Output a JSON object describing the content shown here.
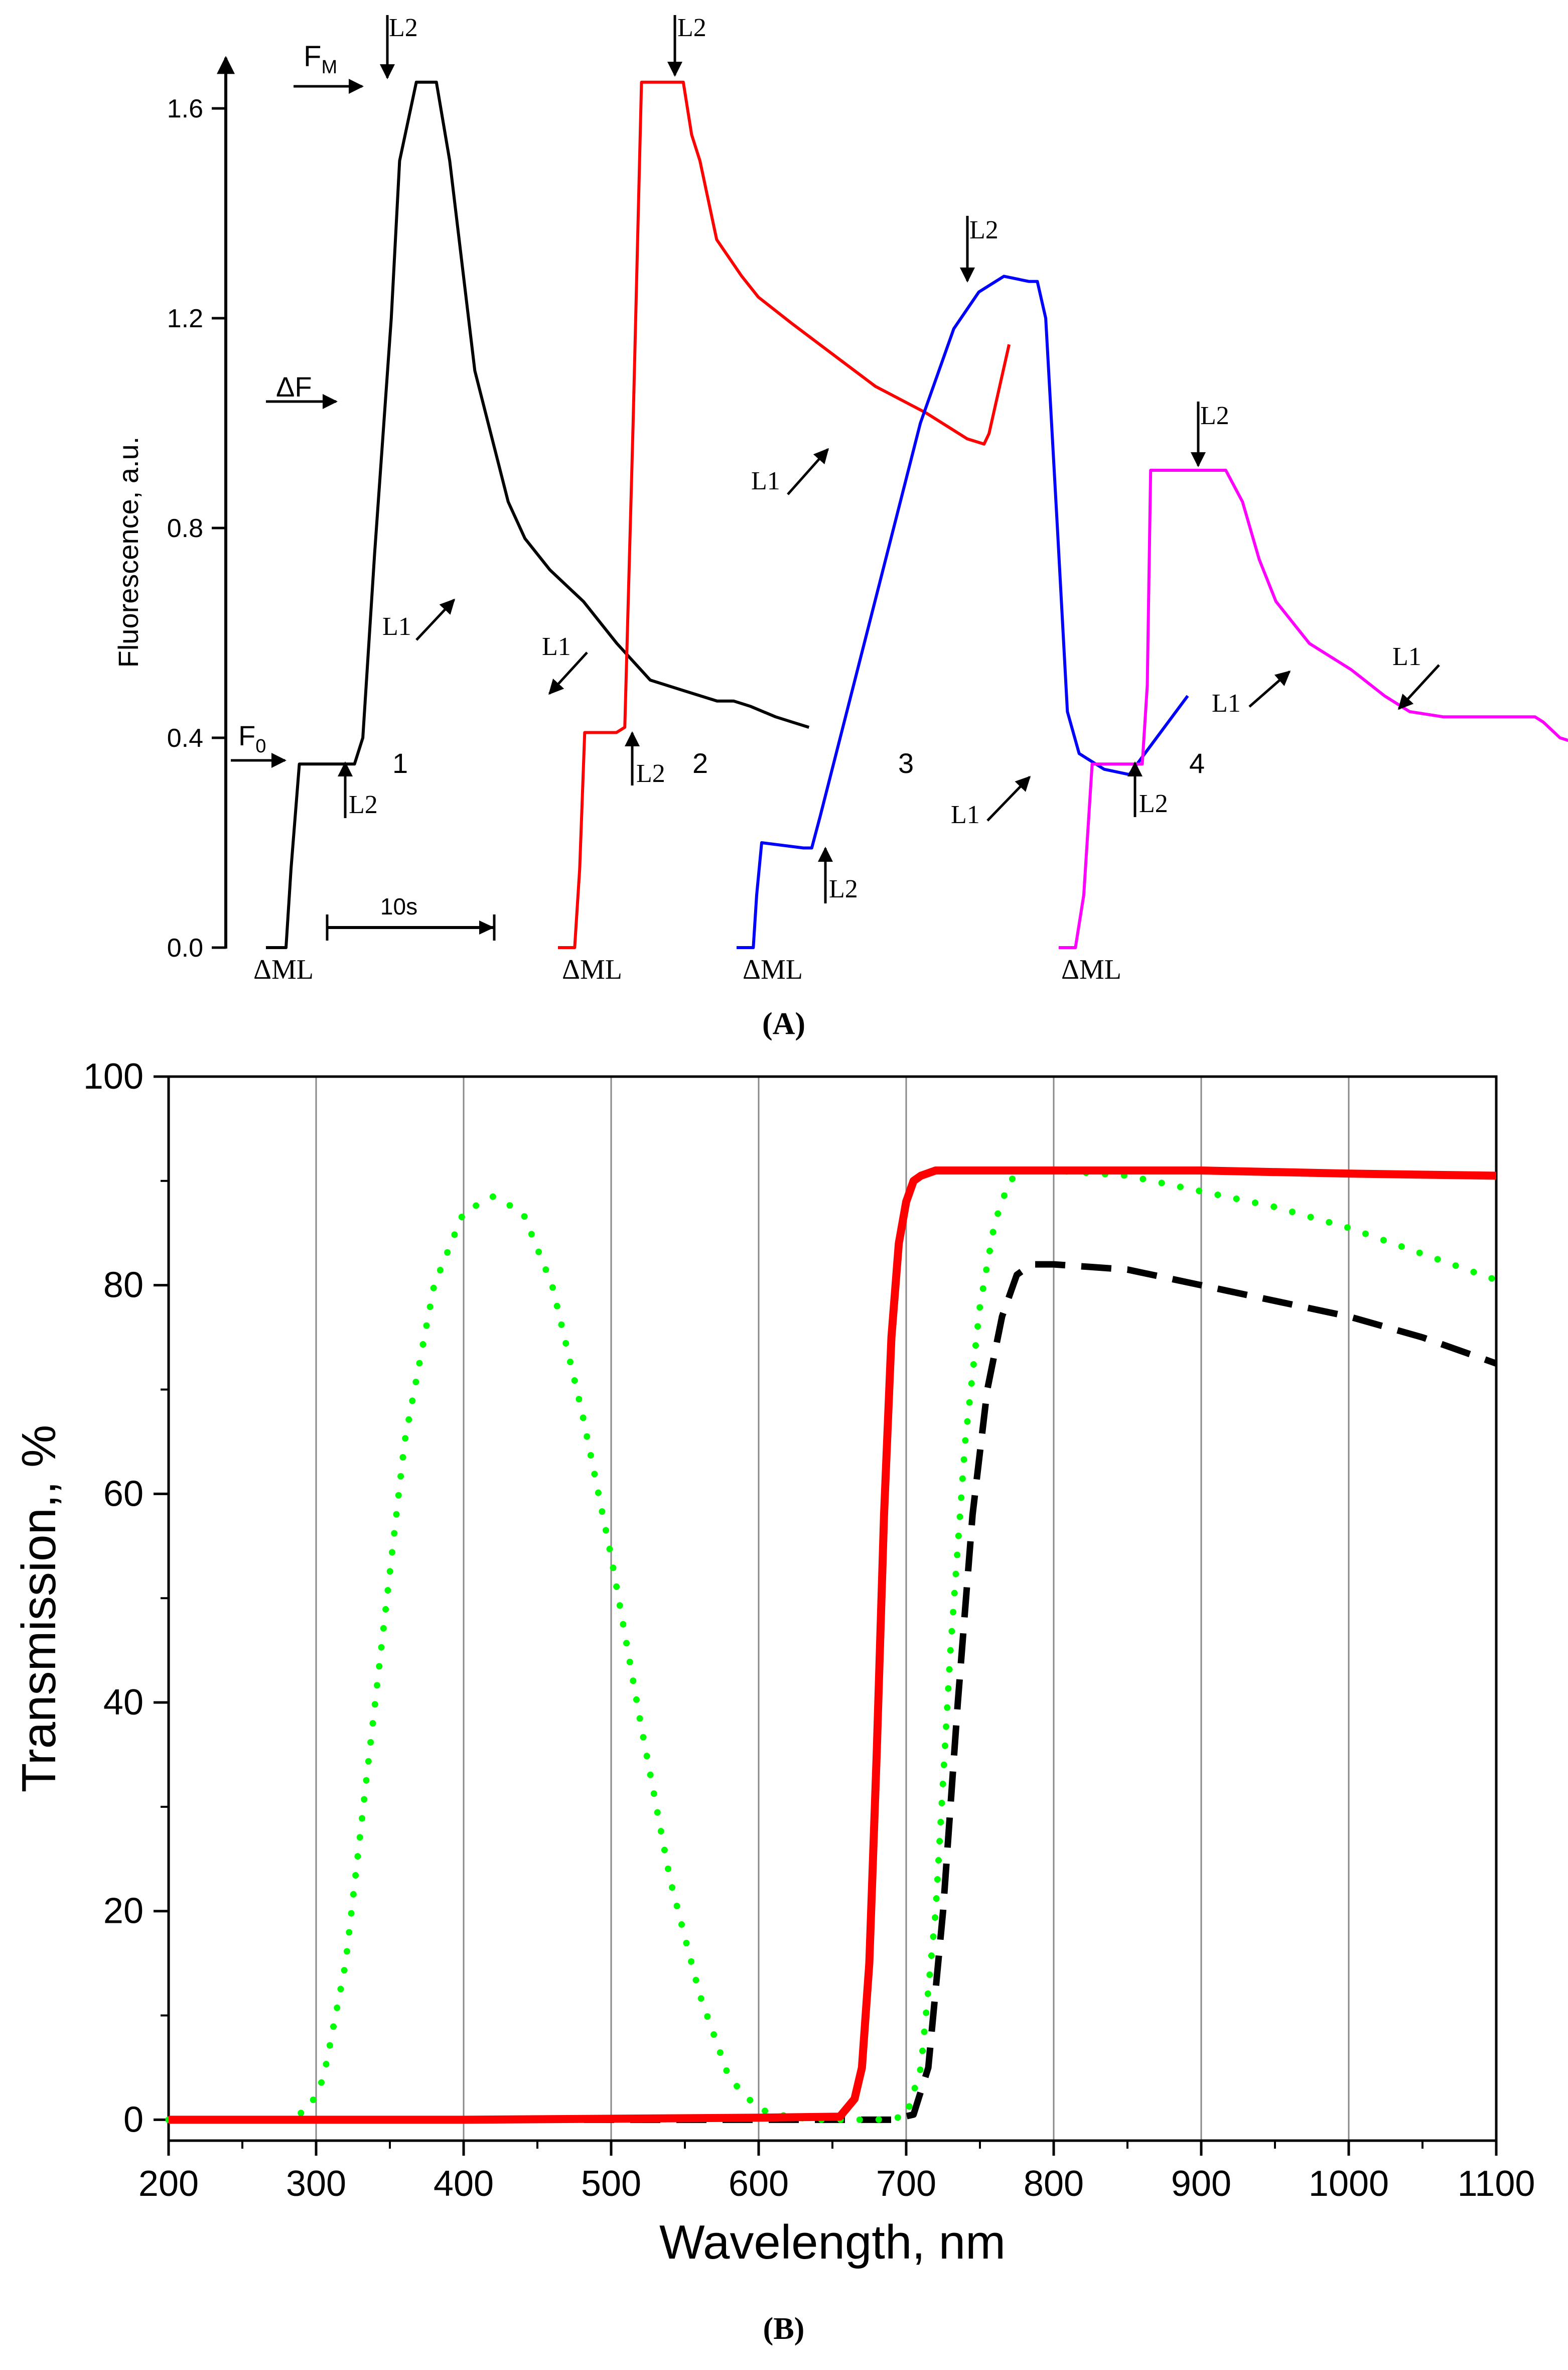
{
  "chart_data": [
    {
      "panel": "A",
      "type": "line",
      "caption": "(A)",
      "ylabel": "Fluorescence, a.u.",
      "ylim": [
        0,
        1.65
      ],
      "yticks": [
        0.0,
        0.4,
        0.8,
        1.2,
        1.6
      ],
      "ytick_labels": [
        "0.0",
        "0.4",
        "0.8",
        "1.2",
        "1.6"
      ],
      "time_scale_label": "10s",
      "time_scale_seconds": 10,
      "series": [
        {
          "name": "1",
          "color": "#000000",
          "t": [
            0,
            1.2,
            1.5,
            2.0,
            5.0,
            5.3,
            5.8,
            6.5,
            7.5,
            8.0,
            9.0,
            9.5,
            10.2,
            11.0,
            12.5,
            14.5,
            15.5,
            17.0,
            19.0,
            21.0,
            23.0,
            25.0,
            26.0,
            27.0,
            28.0,
            29.0,
            30.5,
            31.5,
            32.5
          ],
          "y": [
            0.0,
            0.0,
            0.15,
            0.35,
            0.35,
            0.35,
            0.4,
            0.75,
            1.2,
            1.5,
            1.65,
            1.65,
            1.65,
            1.5,
            1.1,
            0.85,
            0.78,
            0.72,
            0.66,
            0.58,
            0.51,
            0.49,
            0.48,
            0.47,
            0.47,
            0.46,
            0.44,
            0.43,
            0.42
          ]
        },
        {
          "name": "2",
          "color": "#ff0000",
          "t": [
            0,
            1.0,
            1.3,
            1.6,
            3.5,
            4.0,
            4.5,
            5.0,
            6.0,
            7.5,
            8.0,
            8.5,
            9.5,
            11.0,
            12.0,
            14.0,
            16.5,
            19.0,
            22.0,
            24.5,
            25.5,
            25.8,
            27.0
          ],
          "y": [
            0.0,
            0.0,
            0.15,
            0.41,
            0.41,
            0.42,
            1.0,
            1.65,
            1.65,
            1.65,
            1.55,
            1.5,
            1.35,
            1.28,
            1.24,
            1.19,
            1.13,
            1.07,
            1.02,
            0.97,
            0.96,
            0.98,
            1.15
          ]
        },
        {
          "name": "3",
          "color": "#0000ff",
          "t": [
            0,
            1.0,
            1.2,
            1.5,
            4.0,
            4.5,
            5.0,
            7.0,
            9.0,
            11.0,
            13.0,
            14.5,
            16.0,
            17.5,
            18.0,
            18.5,
            19.2,
            19.8,
            20.5,
            21.0,
            22.0,
            23.5,
            27.0
          ],
          "y": [
            0.0,
            0.0,
            0.1,
            0.2,
            0.19,
            0.19,
            0.25,
            0.5,
            0.75,
            1.0,
            1.18,
            1.25,
            1.28,
            1.27,
            1.27,
            1.2,
            0.8,
            0.45,
            0.37,
            0.36,
            0.34,
            0.33,
            0.48
          ]
        },
        {
          "name": "4",
          "color": "#ff00ff",
          "t": [
            0,
            1.0,
            1.5,
            2.0,
            4.5,
            5.0,
            5.3,
            5.5,
            6.0,
            8.0,
            10.0,
            11.0,
            12.0,
            13.0,
            15.0,
            17.5,
            19.5,
            21.0,
            23.0,
            25.0,
            28.5,
            29.0,
            30.0,
            31.0
          ],
          "y": [
            0.0,
            0.0,
            0.1,
            0.35,
            0.35,
            0.35,
            0.5,
            0.91,
            0.91,
            0.91,
            0.91,
            0.85,
            0.74,
            0.66,
            0.58,
            0.53,
            0.48,
            0.45,
            0.44,
            0.44,
            0.44,
            0.43,
            0.4,
            0.39
          ]
        }
      ],
      "annotations": {
        "delta_ml": "ΔML",
        "fm": "F",
        "fm_sub": "M",
        "f0": "F",
        "f0_sub": "0",
        "delta_f": "ΔF",
        "l1": "L1",
        "l2": "L2"
      }
    },
    {
      "panel": "B",
      "type": "line",
      "caption": "(B)",
      "xlabel": "Wavelength, nm",
      "ylabel": "Transmission,, %",
      "xlim": [
        200,
        1100
      ],
      "ylim": [
        -2,
        100
      ],
      "xticks": [
        200,
        300,
        400,
        500,
        600,
        700,
        800,
        900,
        1000,
        1100
      ],
      "yticks": [
        0,
        20,
        40,
        60,
        80,
        100
      ],
      "grid": "vertical",
      "series": [
        {
          "name": "red solid",
          "color": "#ff0000",
          "style": "solid",
          "x": [
            200,
            400,
            600,
            655,
            665,
            670,
            675,
            680,
            685,
            690,
            695,
            700,
            705,
            710,
            720,
            730,
            740,
            750,
            800,
            900,
            1000,
            1100
          ],
          "y": [
            0,
            0,
            0.2,
            0.3,
            2,
            5,
            15,
            35,
            58,
            75,
            84,
            88,
            90,
            90.5,
            91,
            91,
            91,
            91,
            91,
            91,
            90.7,
            90.5
          ]
        },
        {
          "name": "green dotted",
          "color": "#00ff00",
          "style": "dotted",
          "x": [
            200,
            280,
            295,
            305,
            320,
            340,
            360,
            380,
            400,
            420,
            440,
            460,
            480,
            500,
            520,
            540,
            560,
            580,
            600,
            620,
            640,
            660,
            680,
            700,
            710,
            720,
            730,
            740,
            750,
            760,
            770,
            780,
            800,
            850,
            900,
            950,
            1000,
            1050,
            1100
          ],
          "y": [
            0,
            0,
            1,
            4,
            15,
            40,
            65,
            80,
            87,
            88.5,
            87,
            80,
            68,
            54,
            38,
            23,
            12,
            4,
            1,
            0.3,
            0,
            0,
            0,
            0.3,
            5,
            20,
            45,
            65,
            78,
            86,
            90,
            91,
            91,
            90.5,
            89,
            87.5,
            85.5,
            83,
            80.5
          ]
        },
        {
          "name": "black dashed",
          "color": "#000000",
          "style": "dashed",
          "x": [
            200,
            600,
            690,
            705,
            715,
            725,
            735,
            745,
            755,
            765,
            775,
            785,
            800,
            850,
            900,
            950,
            1000,
            1050,
            1100
          ],
          "y": [
            0,
            0,
            0,
            0.5,
            5,
            20,
            40,
            58,
            70,
            77,
            81,
            82,
            82,
            81.5,
            80,
            78.5,
            77,
            75,
            72.5
          ]
        }
      ]
    }
  ]
}
